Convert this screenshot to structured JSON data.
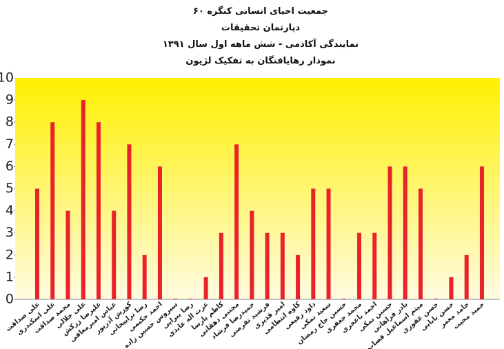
{
  "chart_data": {
    "type": "bar",
    "title": [
      "جمعیت احیای انسانی کنگره ۶۰",
      "دپارتمان تحقیقات",
      "نمایندگی آکادمی - شش ماهه اول سال ۱۳۹۱",
      "نمودار رهایافتگان به تفکیک لژیون"
    ],
    "categories": [
      "علی صداقت",
      "علی اسکندری",
      "محمد صداقت",
      "علی جلالی",
      "علیرضا زرکش",
      "عباس امیرمعافی",
      "کورش آذرپور",
      "رضا ترابیخانی",
      "احمد حکیمی",
      "سیروس حسین زاده",
      "رضا پیرایی",
      "عزت اله عابدی",
      "کاظم پارسا",
      "مجتبی دهقانی",
      "حمیدرضا فرشاد",
      "فرشید تقرضی",
      "امیر قدیری",
      "کاوه انتظامی",
      "داود رفیعی",
      "سعید نمکی",
      "حسین حاج رمضان",
      "محمد جعفری",
      "احمد باعجری",
      "حسین نمکی",
      "نادر فراهانی",
      "میثم اسماعیل قصاب",
      "حسن غفوری",
      "حسن بابایی",
      "حامد معمر",
      "حمید محبت"
    ],
    "values": [
      5,
      8,
      4,
      9,
      8,
      4,
      7,
      2,
      6,
      0,
      0,
      1,
      3,
      7,
      4,
      3,
      3,
      2,
      5,
      5,
      0,
      3,
      3,
      6,
      6,
      5,
      0,
      1,
      2,
      6
    ],
    "color": "#e8232a",
    "ylim": [
      0,
      10
    ],
    "yticks": [
      0,
      1,
      2,
      3,
      4,
      5,
      6,
      7,
      8,
      9,
      10
    ],
    "grid": false
  }
}
